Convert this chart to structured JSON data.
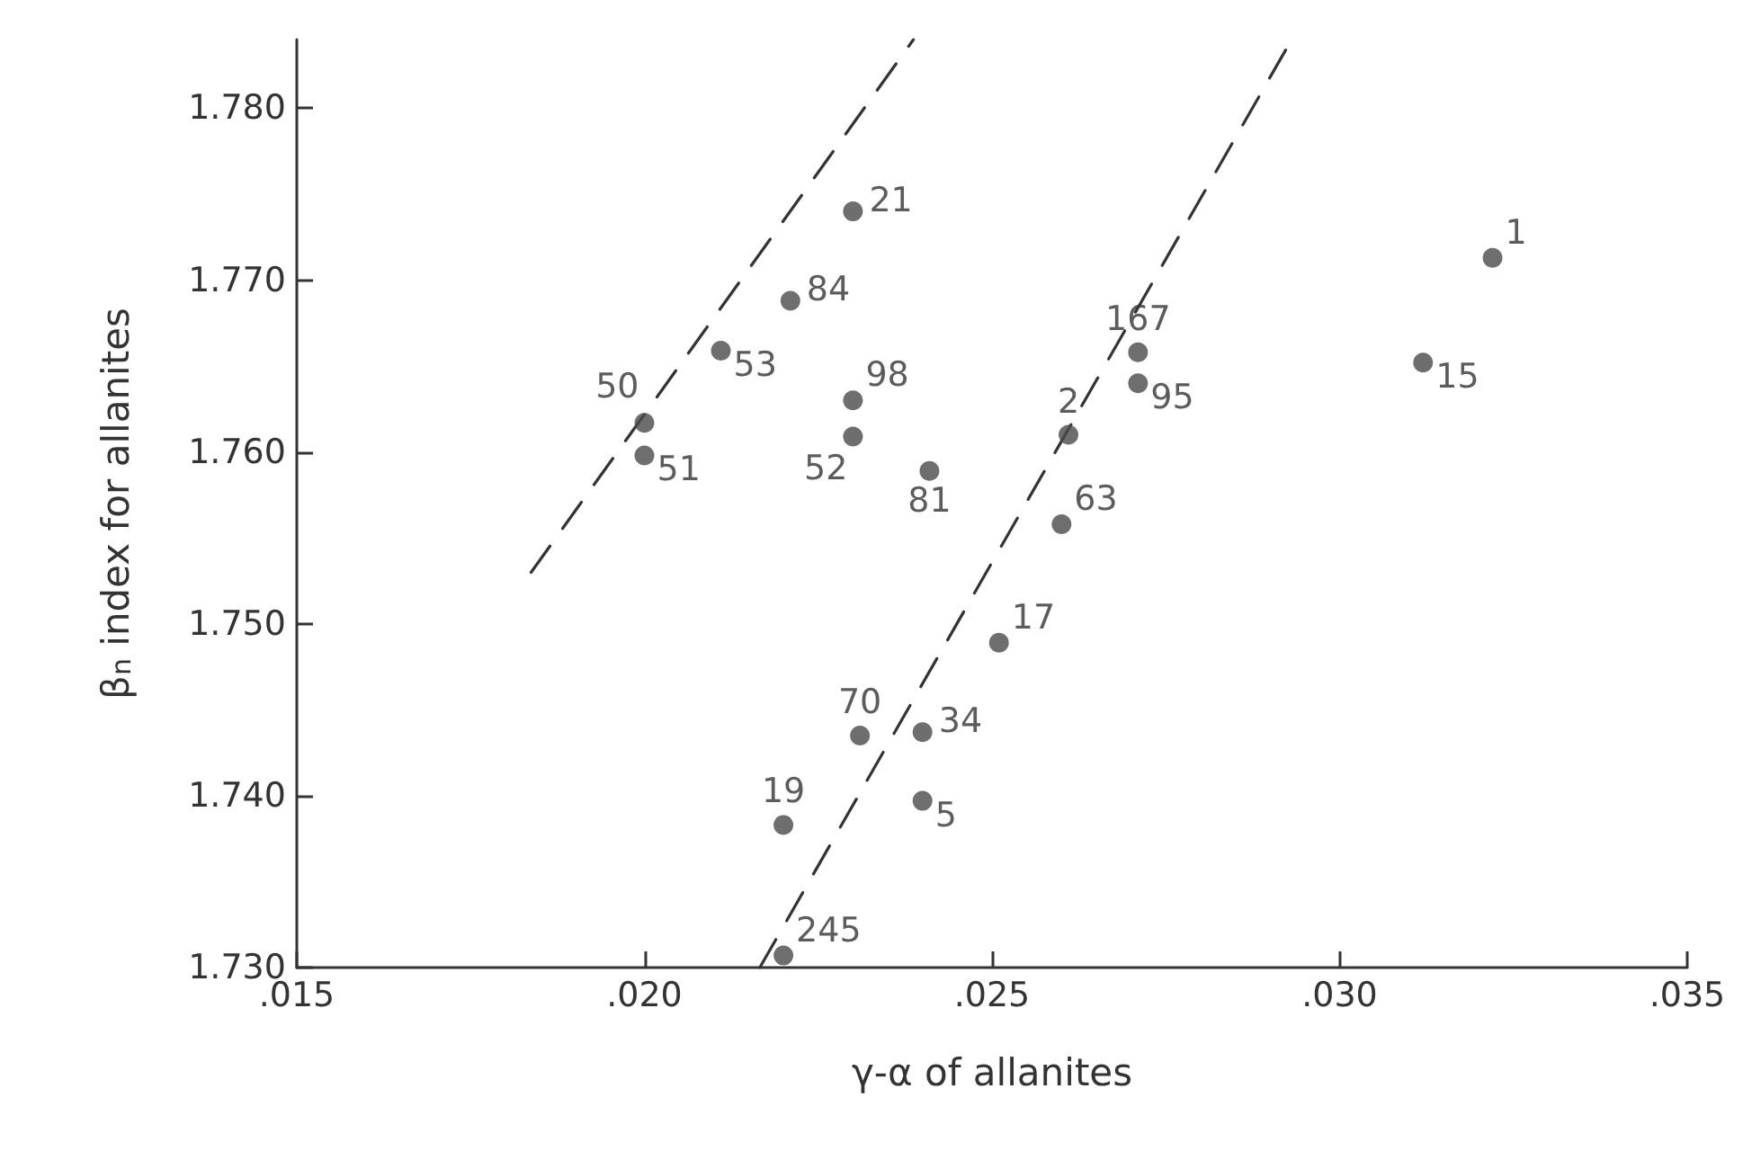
{
  "chart_data": {
    "type": "scatter",
    "xlabel": "γ-α of allanites",
    "ylabel": "β$_{n}$ index for allanites",
    "xlim": [
      0.015,
      0.035
    ],
    "xticks": [
      {
        "value": 0.015,
        "label": ".015"
      },
      {
        "value": 0.02,
        "label": ".020"
      },
      {
        "value": 0.025,
        "label": ".025"
      },
      {
        "value": 0.03,
        "label": ".030"
      },
      {
        "value": 0.035,
        "label": ".035"
      }
    ],
    "ylim": [
      1.73,
      1.784
    ],
    "yticks": [
      {
        "value": 1.73,
        "label": "1.730"
      },
      {
        "value": 1.74,
        "label": "1.740"
      },
      {
        "value": 1.75,
        "label": "1.750"
      },
      {
        "value": 1.76,
        "label": "1.760"
      },
      {
        "value": 1.77,
        "label": "1.770"
      },
      {
        "value": 1.78,
        "label": "1.780"
      }
    ],
    "grid": false,
    "marker": "circle",
    "series": [
      {
        "color": "#4a4a4a",
        "x": [
          0.023,
          0.0221,
          0.0211,
          0.02,
          0.02,
          0.023,
          0.023,
          0.0241,
          0.0261,
          0.026,
          0.0271,
          0.0271,
          0.0322,
          0.0312,
          0.0251,
          0.0231,
          0.024,
          0.022,
          0.024,
          0.022
        ],
        "values": [
          1.774,
          1.7688,
          1.7659,
          1.7617,
          1.7598,
          1.763,
          1.7609,
          1.7589,
          1.761,
          1.7558,
          1.7658,
          1.764,
          1.7713,
          1.7652,
          1.7489,
          1.7435,
          1.7437,
          1.7383,
          1.7397,
          1.7307
        ]
      },
      {
        "type": "line",
        "color": "#333333",
        "line_style": "dashed",
        "marker": "none",
        "x": [
          0.01837,
          0.02387
        ],
        "values": [
          1.753,
          1.784
        ]
      },
      {
        "type": "line",
        "color": "#333333",
        "line_style": "dashed",
        "marker": "none",
        "x": [
          0.02166,
          0.02931
        ],
        "values": [
          1.73,
          1.784
        ]
      }
    ],
    "annotations": [
      {
        "text": "21",
        "x": 0.023,
        "y": 1.774
      },
      {
        "text": "84",
        "x": 0.0221,
        "y": 1.7688
      },
      {
        "text": "53",
        "x": 0.0211,
        "y": 1.7659
      },
      {
        "text": "50",
        "x": 0.02,
        "y": 1.7617
      },
      {
        "text": "51",
        "x": 0.02,
        "y": 1.7598
      },
      {
        "text": "98",
        "x": 0.023,
        "y": 1.763
      },
      {
        "text": "52",
        "x": 0.023,
        "y": 1.7609
      },
      {
        "text": "81",
        "x": 0.0241,
        "y": 1.7589
      },
      {
        "text": "2",
        "x": 0.0261,
        "y": 1.761
      },
      {
        "text": "63",
        "x": 0.026,
        "y": 1.7558
      },
      {
        "text": "167",
        "x": 0.0271,
        "y": 1.7658
      },
      {
        "text": "95",
        "x": 0.0271,
        "y": 1.764
      },
      {
        "text": "1",
        "x": 0.0322,
        "y": 1.7713
      },
      {
        "text": "15",
        "x": 0.0312,
        "y": 1.7652
      },
      {
        "text": "17",
        "x": 0.0251,
        "y": 1.7489
      },
      {
        "text": "70",
        "x": 0.0231,
        "y": 1.7435
      },
      {
        "text": "34",
        "x": 0.024,
        "y": 1.7437
      },
      {
        "text": "19",
        "x": 0.022,
        "y": 1.7383
      },
      {
        "text": "5",
        "x": 0.024,
        "y": 1.7397
      },
      {
        "text": "245",
        "x": 0.022,
        "y": 1.7307
      }
    ]
  }
}
